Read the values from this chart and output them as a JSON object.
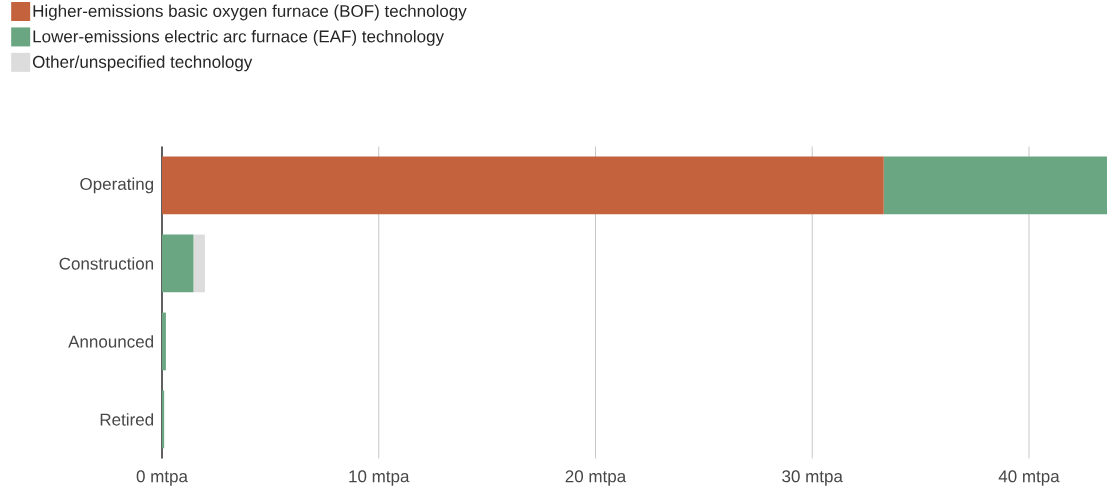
{
  "chart_data": {
    "type": "bar",
    "orientation": "horizontal",
    "stacked": true,
    "categories": [
      "Operating",
      "Construction",
      "Announced",
      "Retired"
    ],
    "series": [
      {
        "name": "Higher-emissions basic oxygen furnace (BOF) technology",
        "color": "#c4623e",
        "values": [
          33.3,
          null,
          null,
          null
        ]
      },
      {
        "name": "Lower-emissions electric arc furnace (EAF) technology",
        "color": "#6aa682",
        "values": [
          10.3,
          1.45,
          0.18,
          0.1
        ]
      },
      {
        "name": "Other/unspecified technology",
        "color": "#dcdcdc",
        "values": [
          null,
          0.53,
          null,
          null
        ]
      }
    ],
    "xlim": [
      0,
      43.6
    ],
    "xticks": [
      {
        "value": 0,
        "label": "0 mtpa"
      },
      {
        "value": 10,
        "label": "10 mtpa"
      },
      {
        "value": 20,
        "label": "20 mtpa"
      },
      {
        "value": 30,
        "label": "30 mtpa"
      },
      {
        "value": 40,
        "label": "40 mtpa"
      }
    ],
    "grid": "x",
    "legend": "top left"
  }
}
